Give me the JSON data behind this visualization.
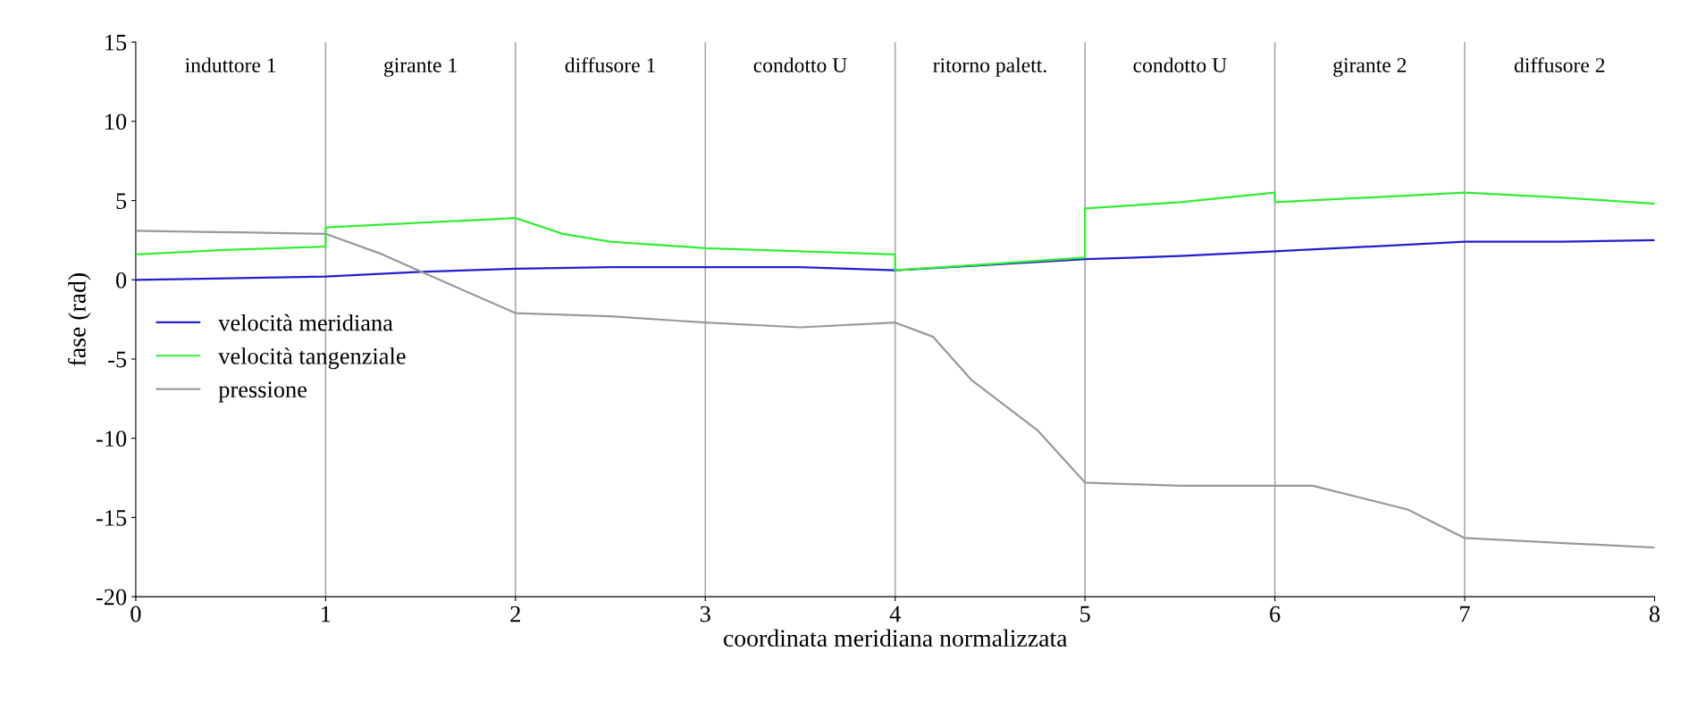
{
  "chart_data": {
    "type": "line",
    "xlabel": "coordinata meridiana normalizzata",
    "ylabel": "fase (rad)",
    "xlim": [
      0,
      8
    ],
    "xticks": [
      0,
      1,
      2,
      3,
      4,
      5,
      6,
      7,
      8
    ],
    "ylim": [
      -20,
      15
    ],
    "yticks": [
      -20,
      -15,
      -10,
      -5,
      0,
      5,
      10,
      15
    ],
    "grid": false,
    "legend": "left",
    "line_style": "solid",
    "marker": "none",
    "series": [
      {
        "name": "velocità meridiana",
        "color": "#2020d0",
        "x": [
          0,
          1,
          1.5,
          2,
          2.5,
          3,
          3.5,
          4,
          5,
          5.5,
          6,
          6.5,
          7,
          7.5,
          8
        ],
        "values": [
          0,
          0.2,
          0.5,
          0.7,
          0.8,
          0.8,
          0.8,
          0.6,
          1.3,
          1.5,
          1.8,
          2.1,
          2.4,
          2.4,
          2.5
        ]
      },
      {
        "name": "velocità tangenziale",
        "color": "#33ee33",
        "x": [
          0,
          0.5,
          1,
          1,
          1.5,
          2,
          2.25,
          2.5,
          3,
          3.5,
          4,
          4,
          4.5,
          5,
          5,
          5.5,
          6,
          6,
          6.5,
          7,
          7.5,
          8
        ],
        "values": [
          1.6,
          1.9,
          2.1,
          3.3,
          3.6,
          3.9,
          2.9,
          2.4,
          2.0,
          1.8,
          1.6,
          0.6,
          1.0,
          1.4,
          4.5,
          4.9,
          5.5,
          4.9,
          5.2,
          5.5,
          5.2,
          4.8
        ]
      },
      {
        "name": "pressione",
        "color": "#999999",
        "x": [
          0,
          1,
          1.3,
          1.6,
          2,
          2.5,
          3,
          3.5,
          4,
          4.2,
          4.4,
          4.75,
          5,
          5.5,
          6.2,
          6.7,
          7,
          7.5,
          8
        ],
        "values": [
          3.1,
          2.9,
          1.6,
          0.0,
          -2.1,
          -2.3,
          -2.7,
          -3.0,
          -2.7,
          -3.6,
          -6.3,
          -9.5,
          -12.8,
          -13.0,
          -13.0,
          -14.5,
          -16.3,
          -16.6,
          -16.9
        ]
      }
    ],
    "ref_lines": [
      {
        "axis": "x",
        "value": 1,
        "color": "#aaaaaa"
      },
      {
        "axis": "x",
        "value": 2,
        "color": "#aaaaaa"
      },
      {
        "axis": "x",
        "value": 3,
        "color": "#aaaaaa"
      },
      {
        "axis": "x",
        "value": 4,
        "color": "#aaaaaa"
      },
      {
        "axis": "x",
        "value": 5,
        "color": "#aaaaaa"
      },
      {
        "axis": "x",
        "value": 6,
        "color": "#aaaaaa"
      },
      {
        "axis": "x",
        "value": 7,
        "color": "#aaaaaa"
      }
    ],
    "annotations": [
      "induttore 1",
      "girante 1",
      "diffusore 1",
      "condotto U",
      "ritorno palett.",
      "condotto U",
      "girante 2",
      "diffusore 2"
    ]
  }
}
